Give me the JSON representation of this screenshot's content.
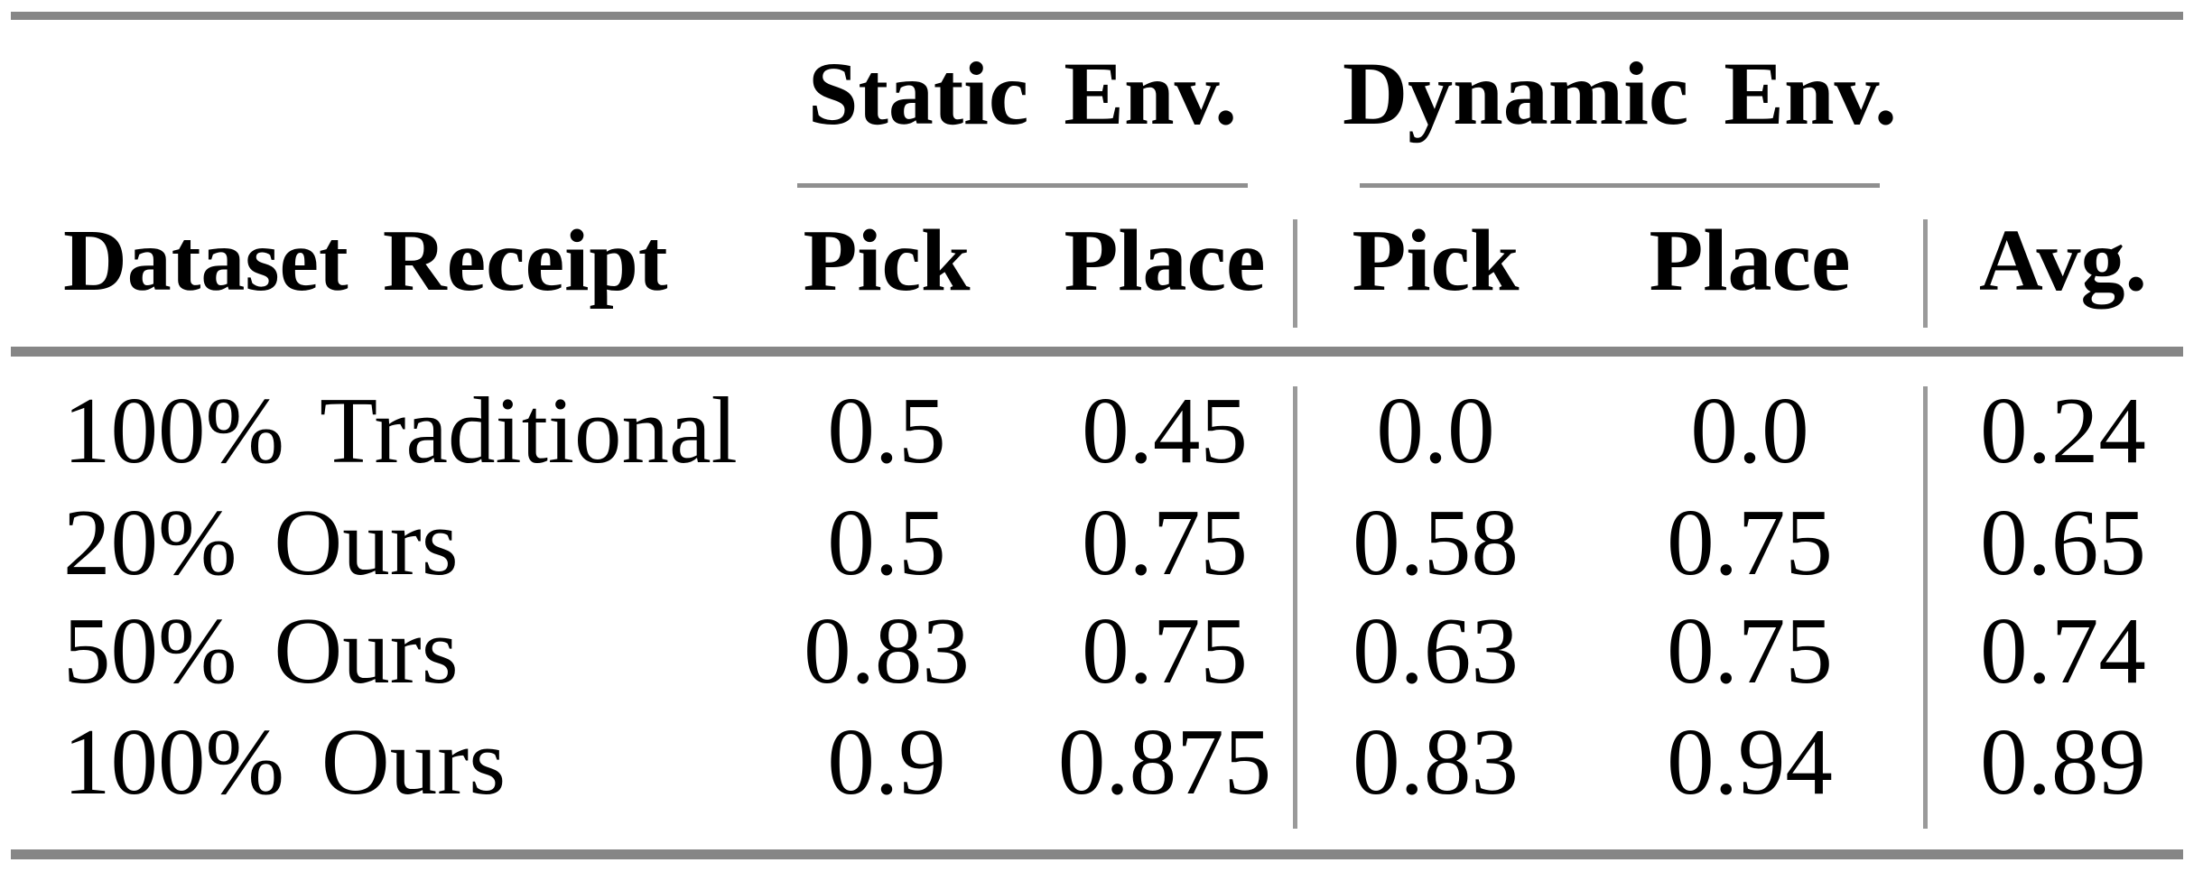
{
  "table": {
    "column_groups": [
      {
        "label": "Static Env."
      },
      {
        "label": "Dynamic Env."
      }
    ],
    "columns": [
      "Dataset Receipt",
      "Pick",
      "Place",
      "Pick",
      "Place",
      "Avg."
    ],
    "rows": [
      {
        "label": "100% Traditional",
        "values": [
          "0.5",
          "0.45",
          "0.0",
          "0.0",
          "0.24"
        ]
      },
      {
        "label": "20% Ours",
        "values": [
          "0.5",
          "0.75",
          "0.58",
          "0.75",
          "0.65"
        ]
      },
      {
        "label": "50% Ours",
        "values": [
          "0.83",
          "0.75",
          "0.63",
          "0.75",
          "0.74"
        ]
      },
      {
        "label": "100% Ours",
        "values": [
          "0.9",
          "0.875",
          "0.83",
          "0.94",
          "0.89"
        ]
      }
    ],
    "colors": {
      "heavy_rule": "#868686",
      "light_rule": "#9a9a9a",
      "text": "#000000",
      "background": "#ffffff"
    }
  }
}
